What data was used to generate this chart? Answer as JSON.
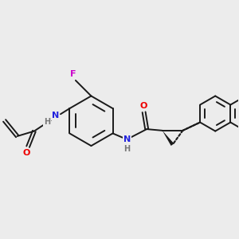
{
  "background_color": "#ececec",
  "bond_color": "#1a1a1a",
  "line_width": 1.4,
  "atom_colors": {
    "F": "#cc00cc",
    "N": "#2222dd",
    "O": "#ee0000",
    "H": "#777777",
    "C": "#1a1a1a"
  },
  "figsize": [
    3.0,
    3.0
  ],
  "dpi": 100
}
